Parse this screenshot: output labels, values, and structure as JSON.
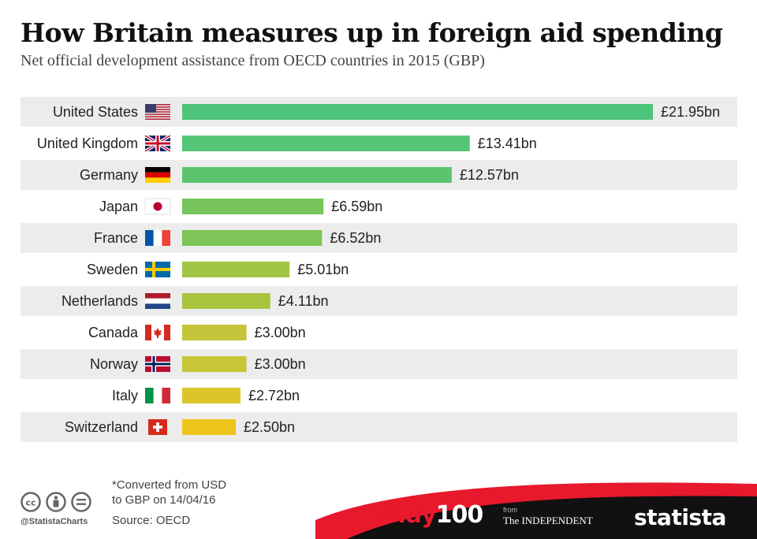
{
  "chart_data": {
    "type": "bar",
    "orientation": "horizontal",
    "title": "How Britain measures up in foreign aid spending",
    "subtitle": "Net official development assistance from OECD countries in 2015 (GBP)",
    "categories": [
      "United States",
      "United Kingdom",
      "Germany",
      "Japan",
      "France",
      "Sweden",
      "Netherlands",
      "Canada",
      "Norway",
      "Italy",
      "Switzerland"
    ],
    "values": [
      21.95,
      13.41,
      12.57,
      6.59,
      6.52,
      5.01,
      4.11,
      3.0,
      3.0,
      2.72,
      2.5
    ],
    "value_labels": [
      "£21.95bn",
      "£13.41bn",
      "£12.57bn",
      "£6.59bn",
      "£6.52bn",
      "£5.01bn",
      "£4.11bn",
      "£3.00bn",
      "£3.00bn",
      "£2.72bn",
      "£2.50bn"
    ],
    "flags": [
      "us-flag",
      "uk-flag",
      "germany-flag",
      "japan-flag",
      "france-flag",
      "sweden-flag",
      "netherlands-flag",
      "canada-flag",
      "norway-flag",
      "italy-flag",
      "switzerland-flag"
    ],
    "bar_colors": [
      "#4cc47a",
      "#54c576",
      "#5cc46f",
      "#76c45a",
      "#7cc556",
      "#a0c544",
      "#a8c43f",
      "#c3c53a",
      "#c8c536",
      "#dcc52a",
      "#eec51a"
    ],
    "xlim": [
      0,
      21.95
    ],
    "unit": "GBP billions"
  },
  "footer": {
    "note_line1": "*Converted from USD",
    "note_line2": "to GBP on 14/04/16",
    "source": "Source: OECD",
    "handle": "@StatistaCharts",
    "indy": "indy",
    "indy_num": "100",
    "from": "from",
    "independent": "The INDEPENDENT",
    "statista": "statista"
  }
}
